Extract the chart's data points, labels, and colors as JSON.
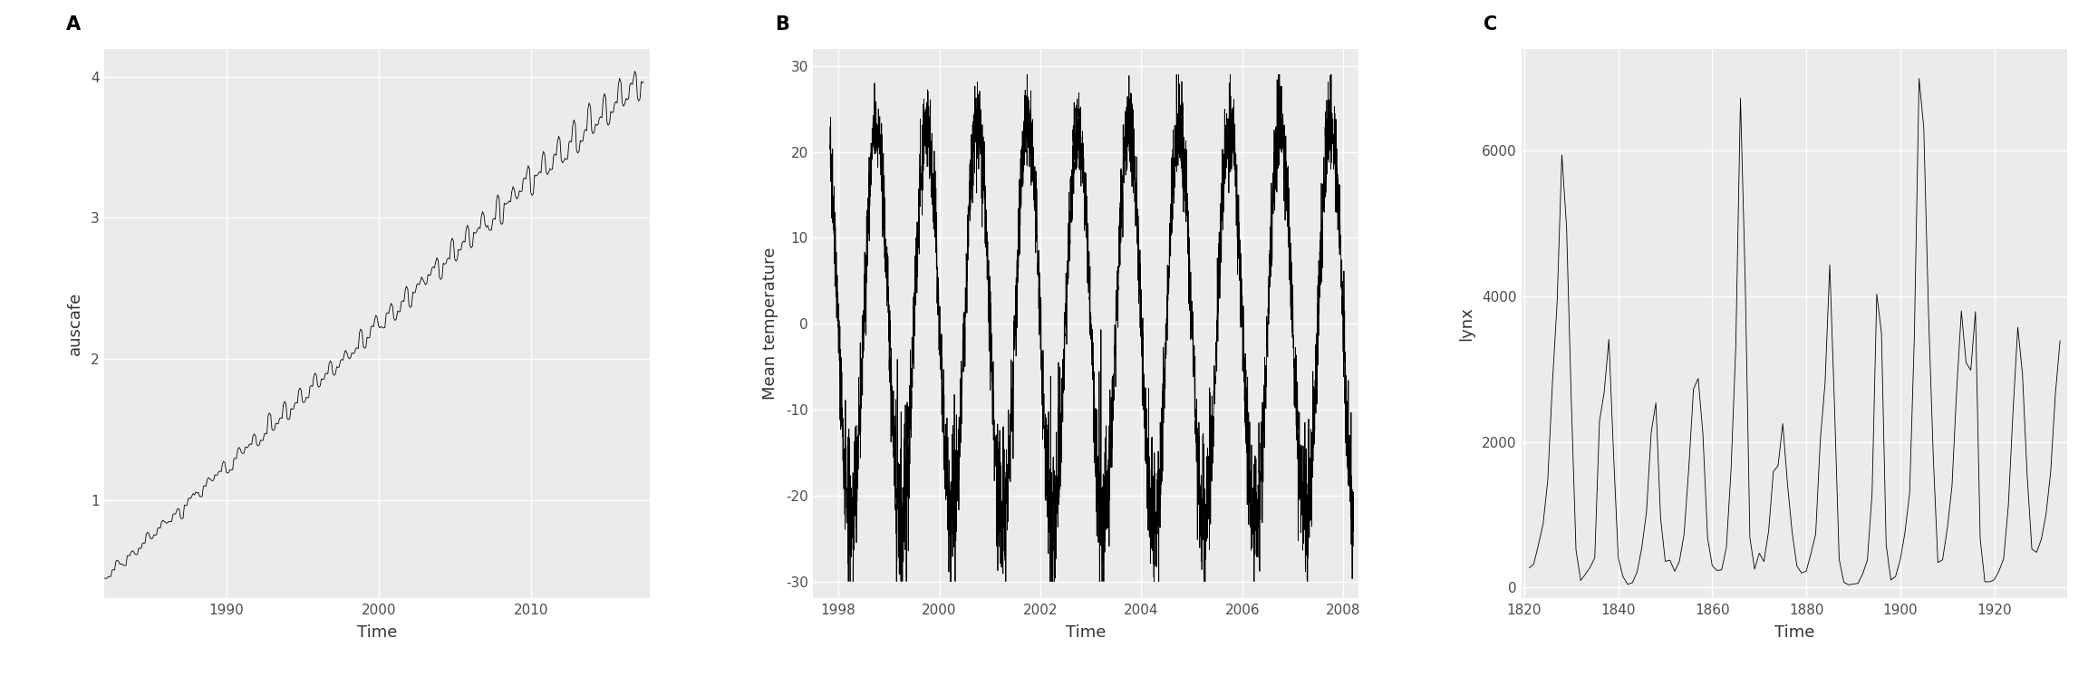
{
  "panel_A": {
    "label": "A",
    "ylabel": "auscafe",
    "xlabel": "Time",
    "xlim": [
      1982.0,
      2017.8
    ],
    "ylim": [
      0.3,
      4.2
    ],
    "yticks": [
      1,
      2,
      3,
      4
    ],
    "xticks": [
      1990,
      2000,
      2010
    ]
  },
  "panel_B": {
    "label": "B",
    "ylabel": "Mean temperature",
    "xlabel": "Time",
    "xlim": [
      1997.5,
      2008.3
    ],
    "ylim": [
      -32,
      32
    ],
    "yticks": [
      -30,
      -20,
      -10,
      0,
      10,
      20,
      30
    ],
    "xticks": [
      1998,
      2000,
      2002,
      2004,
      2006,
      2008
    ]
  },
  "panel_C": {
    "label": "C",
    "ylabel": "lynx",
    "xlabel": "Time",
    "xlim": [
      1819.5,
      1935.5
    ],
    "ylim": [
      -150,
      7400
    ],
    "yticks": [
      0,
      2000,
      4000,
      6000
    ],
    "xticks": [
      1820,
      1840,
      1860,
      1880,
      1900,
      1920
    ]
  },
  "bg_color": "#EBEBEB",
  "line_color": "#000000",
  "grid_color": "#FFFFFF",
  "tick_color": "#4D4D4D",
  "tick_fontsize": 11,
  "axis_label_fontsize": 13,
  "panel_label_fontsize": 15
}
